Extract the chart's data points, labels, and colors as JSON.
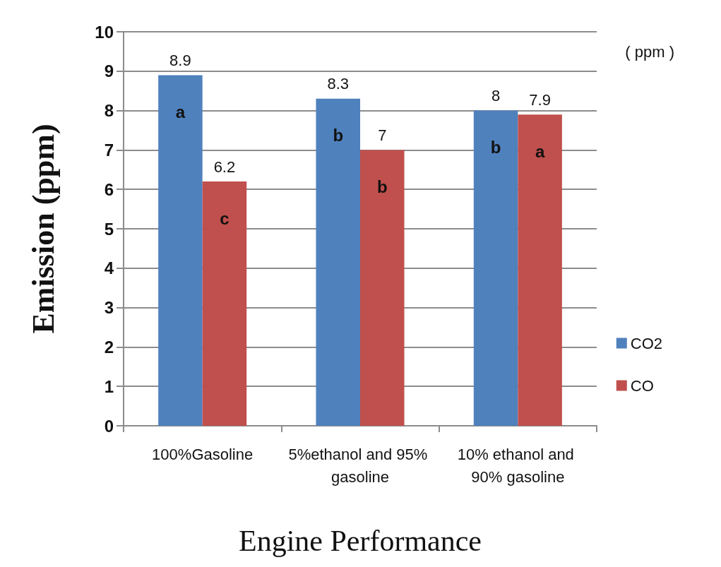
{
  "chart_data": {
    "type": "bar",
    "xlabel": "Engine Performance",
    "ylabel": "Emission (ppm)",
    "categories": [
      "100%Gasoline",
      "5%ethanol and 95% gasoline",
      "10% ethanol and 90% gasoline"
    ],
    "series": [
      {
        "name": "CO2",
        "color": "#4f81bd",
        "values": [
          8.9,
          8.3,
          8
        ]
      },
      {
        "name": "CO",
        "color": "#c0504d",
        "values": [
          6.2,
          7,
          7.9
        ]
      }
    ],
    "ylim": [
      0,
      10
    ],
    "yticks": [
      0,
      1,
      2,
      3,
      4,
      5,
      6,
      7,
      8,
      9,
      10
    ],
    "grid": "y",
    "legend": "right",
    "data_labels": true,
    "annotations": [
      "( ppm )",
      {
        "text": "a",
        "x": "100%Gasoline",
        "y": 8.9
      },
      {
        "text": "c",
        "x": "100%Gasoline",
        "y": 6.2
      },
      {
        "text": "b",
        "x": "5%ethanol and 95% gasoline",
        "y": 8.3
      },
      {
        "text": "b",
        "x": "5%ethanol and 95% gasoline",
        "y": 7
      },
      {
        "text": "b",
        "x": "10% ethanol and 90% gasoline",
        "y": 8
      },
      {
        "text": "a",
        "x": "10% ethanol and 90% gasoline",
        "y": 7.9
      }
    ]
  }
}
